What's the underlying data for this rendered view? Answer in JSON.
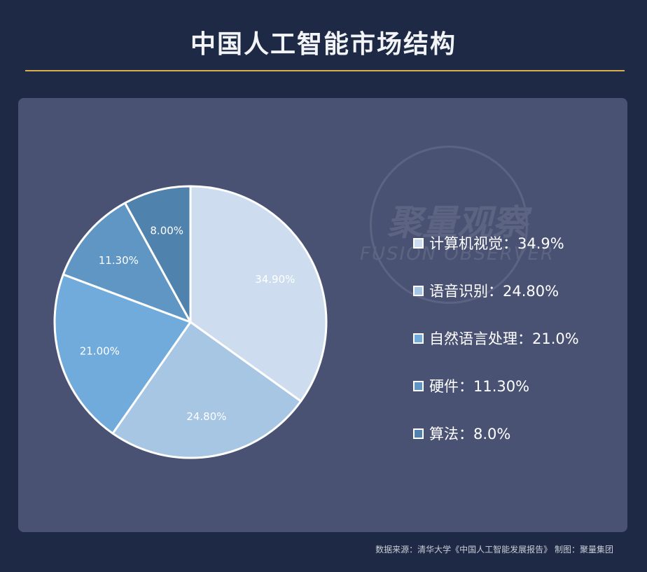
{
  "title": "中国人工智能市场结构",
  "watermark": {
    "name": "聚量观察",
    "name_en": "FUSION OBSERVER"
  },
  "chart_data": {
    "type": "pie",
    "categories": [
      "计算机视觉",
      "语音识别",
      "自然语言处理",
      "硬件",
      "算法"
    ],
    "values": [
      34.9,
      24.8,
      21.0,
      11.3,
      8.0
    ],
    "data_labels": [
      "34.90%",
      "24.80%",
      "21.00%",
      "11.30%",
      "8.00%"
    ],
    "colors": [
      "#cddcee",
      "#a7c6e4",
      "#70abdc",
      "#5f96c4",
      "#4f82ad"
    ],
    "start": "top",
    "direction": "clockwise",
    "legend_position": "right"
  },
  "legend": {
    "items": [
      {
        "label": "计算机视觉：34.9%"
      },
      {
        "label": "语音识别：24.80%"
      },
      {
        "label": "自然语言处理：21.0%"
      },
      {
        "label": "硬件：11.30%"
      },
      {
        "label": "算法：8.0%"
      }
    ]
  },
  "footer": "数据来源：清华大学《中国人工智能发展报告》  制图：聚量集团"
}
